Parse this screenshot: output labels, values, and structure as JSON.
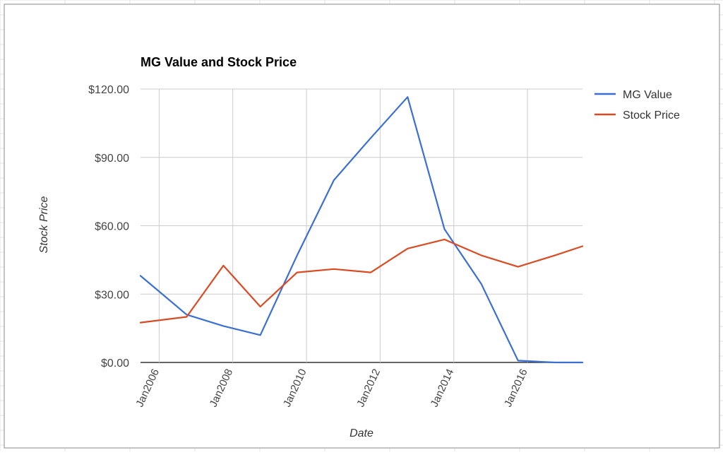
{
  "chart_data": {
    "type": "line",
    "title": "MG Value and Stock Price",
    "xlabel": "Date",
    "ylabel": "Stock Price",
    "x_range": [
      "2005-06-30",
      "2017-06-30"
    ],
    "x_ticks": [
      {
        "date": "2006-01-01",
        "label": "Jan2006"
      },
      {
        "date": "2008-01-01",
        "label": "Jan2008"
      },
      {
        "date": "2010-01-01",
        "label": "Jan2010"
      },
      {
        "date": "2012-01-01",
        "label": "Jan2012"
      },
      {
        "date": "2014-01-01",
        "label": "Jan2014"
      },
      {
        "date": "2016-01-01",
        "label": "Jan2016"
      }
    ],
    "ylim": [
      0,
      120
    ],
    "y_ticks": [
      {
        "value": 0,
        "label": "$0.00"
      },
      {
        "value": 30,
        "label": "$30.00"
      },
      {
        "value": 60,
        "label": "$60.00"
      },
      {
        "value": 90,
        "label": "$90.00"
      },
      {
        "value": 120,
        "label": "$120.00"
      }
    ],
    "x": [
      "2005-06-30",
      "2006-09-30",
      "2007-09-30",
      "2008-09-30",
      "2009-09-30",
      "2010-09-30",
      "2011-09-30",
      "2012-09-30",
      "2013-09-30",
      "2014-09-30",
      "2015-09-30",
      "2016-09-30",
      "2017-06-30"
    ],
    "series": [
      {
        "name": "MG Value",
        "color": "#3b6fd4",
        "values": [
          38,
          21,
          16,
          12,
          47,
          80,
          98.5,
          116.5,
          58.5,
          34.5,
          0.8,
          0,
          0
        ]
      },
      {
        "name": "Stock Price",
        "color": "#db4a23",
        "values": [
          17.5,
          20,
          42.5,
          24.5,
          39.5,
          41,
          39.5,
          50,
          54,
          47,
          42,
          47,
          51
        ]
      }
    ],
    "grid": true,
    "legend": "top-right"
  }
}
